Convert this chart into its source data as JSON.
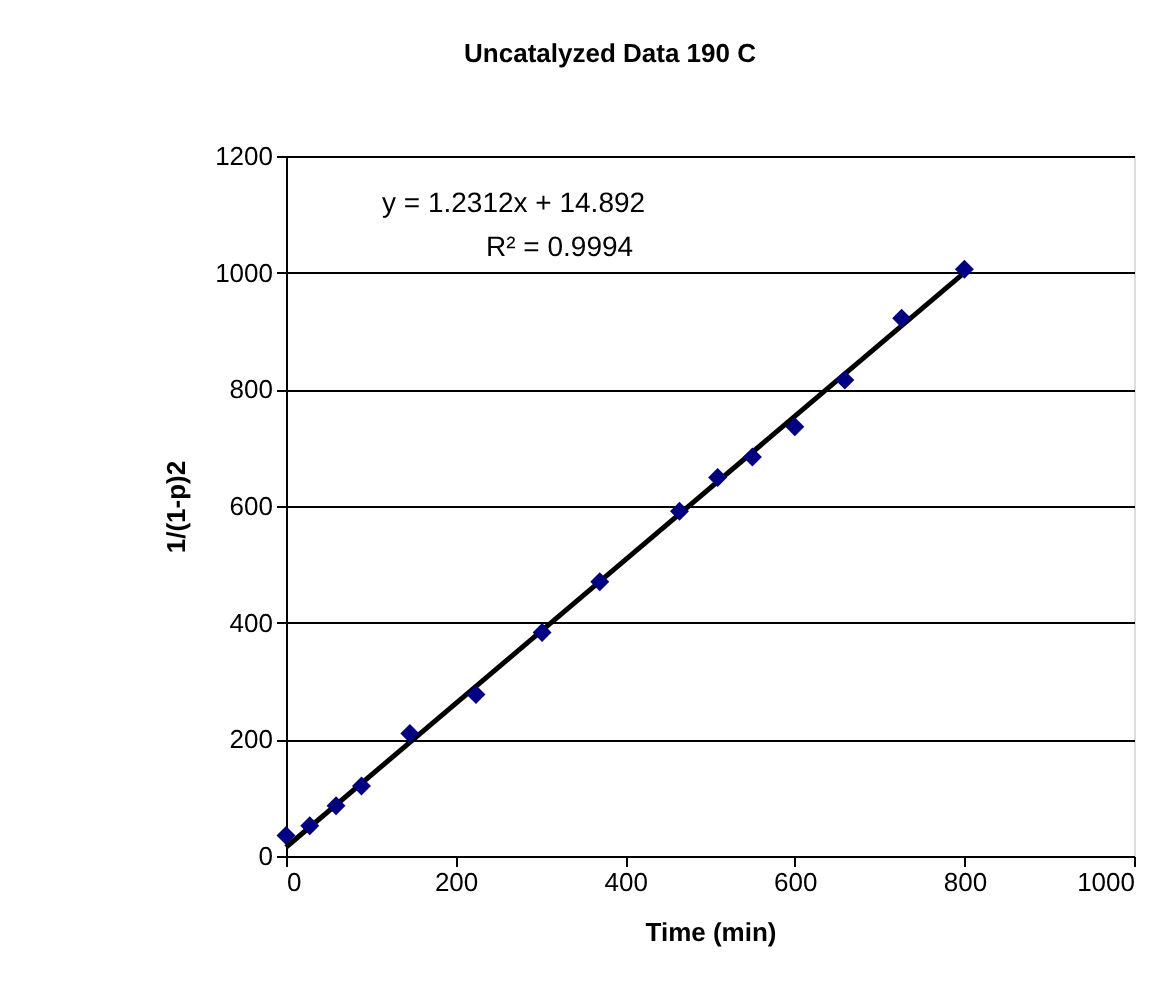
{
  "chart_data": {
    "type": "scatter",
    "title": "Uncatalyzed Data 190 C",
    "xlabel": "Time (min)",
    "ylabel": "1/(1-p)2",
    "x": [
      0,
      28,
      59,
      89,
      146,
      224,
      302,
      370,
      464,
      509,
      550,
      600,
      659,
      726,
      800
    ],
    "series": [
      {
        "color": "#000080",
        "marker": "diamond",
        "values": [
          35,
          52,
          86,
          120,
          210,
          277,
          383,
          470,
          591,
          649,
          684,
          736,
          816,
          922,
          1006
        ]
      },
      {
        "type": "line",
        "color": "#000000",
        "line_style": "solid",
        "marker": "none",
        "x": [
          0,
          800
        ],
        "values": [
          15,
          1000
        ]
      }
    ],
    "annotations": [
      "y = 1.2312x + 14.892",
      "R² = 0.9994"
    ],
    "xlim": [
      0,
      1000
    ],
    "xticks": [
      0,
      200,
      400,
      600,
      800,
      1000
    ],
    "ylim": [
      0,
      1200
    ],
    "yticks": [
      0,
      200,
      400,
      600,
      800,
      1000,
      1200
    ],
    "grid": "y"
  }
}
